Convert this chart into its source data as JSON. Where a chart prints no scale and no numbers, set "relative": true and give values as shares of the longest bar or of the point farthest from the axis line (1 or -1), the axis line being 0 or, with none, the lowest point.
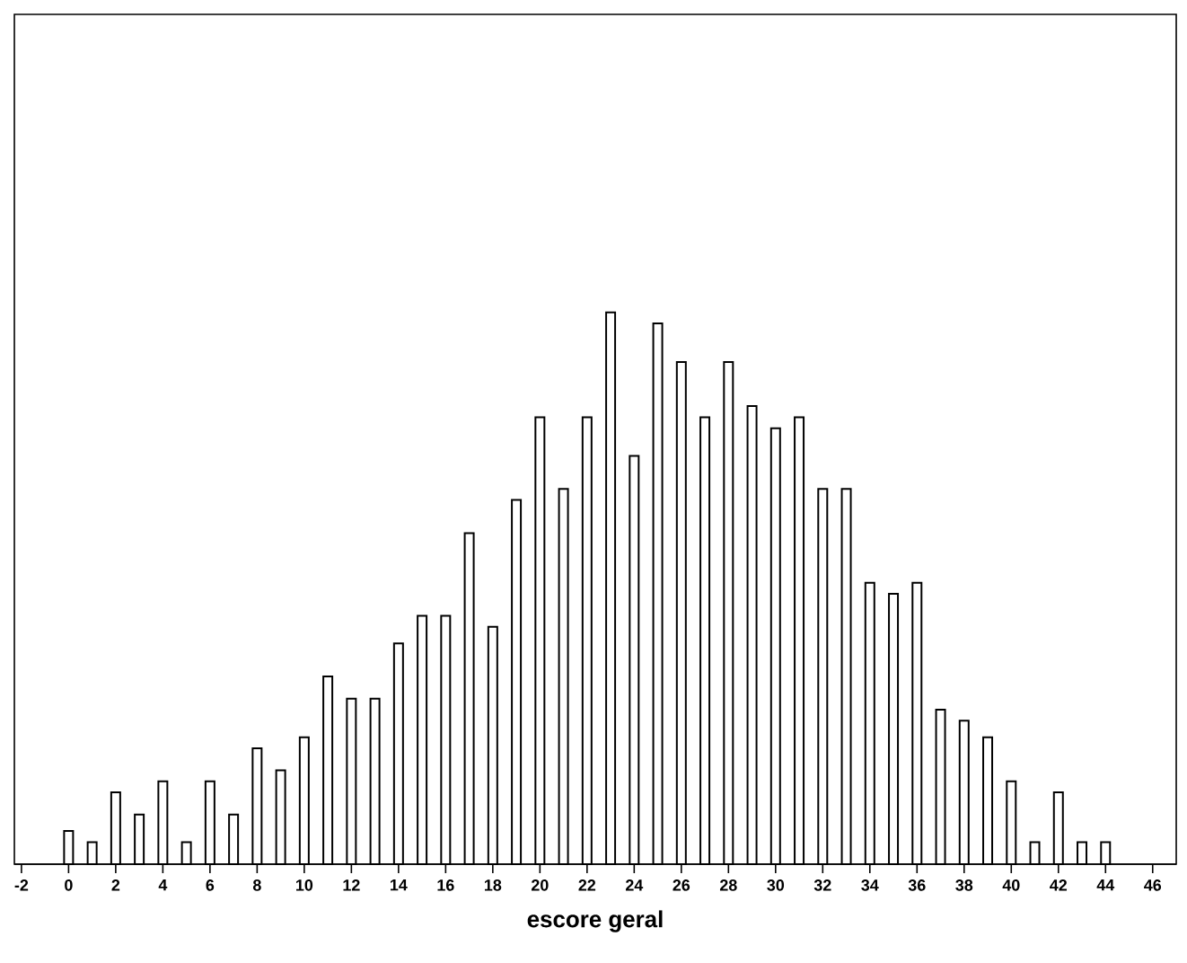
{
  "chart_data": {
    "type": "bar",
    "relative": true,
    "xlabel": "**escore geral**",
    "color": "#ffffff",
    "x": [
      0,
      1,
      2,
      3,
      4,
      5,
      6,
      7,
      8,
      9,
      10,
      11,
      12,
      13,
      14,
      15,
      16,
      17,
      18,
      19,
      20,
      21,
      22,
      23,
      24,
      25,
      26,
      27,
      28,
      29,
      30,
      31,
      32,
      33,
      34,
      35,
      36,
      37,
      38,
      39,
      40,
      41,
      42,
      43,
      44
    ],
    "values": [
      0.06,
      0.04,
      0.13,
      0.09,
      0.15,
      0.04,
      0.15,
      0.09,
      0.21,
      0.17,
      0.23,
      0.34,
      0.3,
      0.3,
      0.4,
      0.45,
      0.45,
      0.6,
      0.43,
      0.66,
      0.81,
      0.68,
      0.81,
      1,
      0.74,
      0.98,
      0.91,
      0.81,
      0.91,
      0.83,
      0.79,
      0.81,
      0.68,
      0.68,
      0.51,
      0.49,
      0.51,
      0.28,
      0.26,
      0.23,
      0.15,
      0.04,
      0.13,
      0.04,
      0.04
    ],
    "xlim": [
      -2.3,
      47
    ],
    "xticks": [
      -2,
      0,
      2,
      4,
      6,
      8,
      10,
      12,
      14,
      16,
      18,
      20,
      22,
      24,
      26,
      28,
      30,
      32,
      34,
      36,
      38,
      40,
      42,
      44,
      46
    ]
  }
}
